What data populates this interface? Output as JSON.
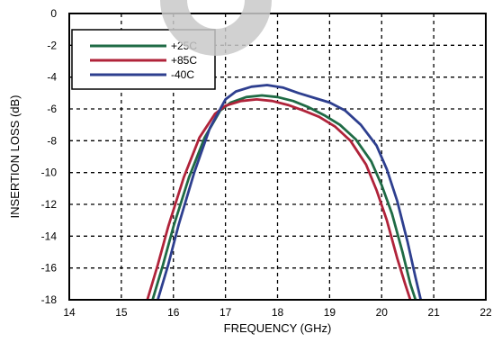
{
  "chart_data": {
    "type": "line",
    "xlabel": "FREQUENCY (GHz)",
    "ylabel": "INSERTION LOSS (dB)",
    "xlim": [
      14,
      22
    ],
    "ylim": [
      -18,
      0
    ],
    "xticks": [
      14,
      15,
      16,
      17,
      18,
      19,
      20,
      21,
      22
    ],
    "yticks": [
      0,
      -2,
      -4,
      -6,
      -8,
      -10,
      -12,
      -14,
      -16,
      -18
    ],
    "grid": true,
    "legend_position": "top-left",
    "series": [
      {
        "name": "+25C",
        "color": "#1f6b45",
        "x": [
          15.6,
          15.8,
          16.0,
          16.3,
          16.6,
          16.9,
          17.1,
          17.4,
          17.7,
          18.0,
          18.3,
          18.6,
          18.9,
          19.2,
          19.5,
          19.8,
          20.0,
          20.2,
          20.4,
          20.55,
          20.65
        ],
        "y": [
          -18.0,
          -15.8,
          -13.4,
          -10.3,
          -7.8,
          -6.1,
          -5.6,
          -5.25,
          -5.15,
          -5.25,
          -5.5,
          -5.9,
          -6.4,
          -7.0,
          -7.9,
          -9.3,
          -10.8,
          -12.6,
          -15.0,
          -17.0,
          -18.0
        ]
      },
      {
        "name": "+85C",
        "color": "#b0233a",
        "x": [
          15.5,
          15.7,
          15.9,
          16.2,
          16.5,
          16.8,
          17.0,
          17.3,
          17.6,
          17.9,
          18.2,
          18.5,
          18.8,
          19.1,
          19.4,
          19.7,
          19.9,
          20.1,
          20.3,
          20.45,
          20.55
        ],
        "y": [
          -18.0,
          -15.8,
          -13.4,
          -10.3,
          -7.8,
          -6.3,
          -5.8,
          -5.5,
          -5.4,
          -5.5,
          -5.75,
          -6.1,
          -6.5,
          -7.1,
          -8.0,
          -9.5,
          -11.1,
          -13.0,
          -15.4,
          -17.0,
          -18.0
        ]
      },
      {
        "name": "-40C",
        "color": "#2e3f8f",
        "x": [
          15.7,
          15.9,
          16.1,
          16.4,
          16.7,
          17.0,
          17.2,
          17.5,
          17.8,
          18.1,
          18.4,
          18.7,
          19.0,
          19.3,
          19.6,
          19.9,
          20.1,
          20.3,
          20.5,
          20.65,
          20.75
        ],
        "y": [
          -18.0,
          -15.8,
          -13.3,
          -10.0,
          -7.2,
          -5.4,
          -4.9,
          -4.6,
          -4.5,
          -4.65,
          -5.0,
          -5.3,
          -5.6,
          -6.1,
          -7.0,
          -8.3,
          -9.8,
          -11.8,
          -14.4,
          -16.6,
          -18.0
        ]
      }
    ]
  }
}
